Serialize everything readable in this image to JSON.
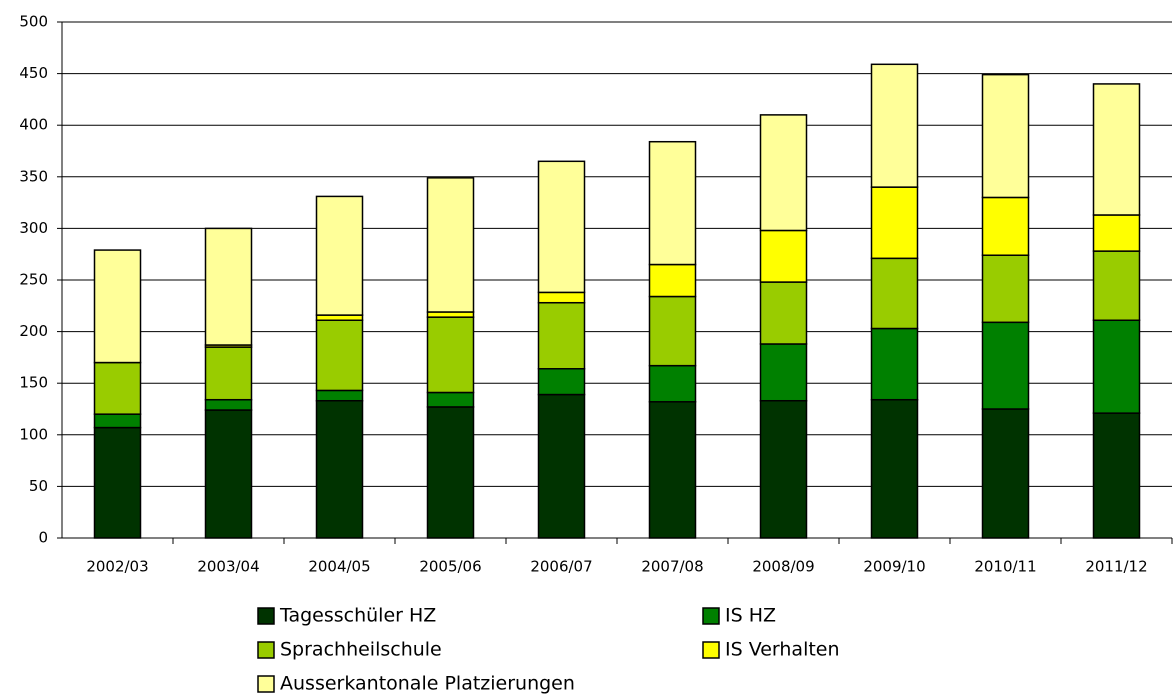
{
  "chart_data": {
    "type": "stacked_bar",
    "categories": [
      "2002/03",
      "2003/04",
      "2004/05",
      "2005/06",
      "2006/07",
      "2007/08",
      "2008/09",
      "2009/10",
      "2010/11",
      "2011/12"
    ],
    "series": [
      {
        "name": "Tagesschüler HZ",
        "color": "#003300",
        "values": [
          107,
          124,
          133,
          127,
          139,
          132,
          133,
          134,
          125,
          121
        ]
      },
      {
        "name": "IS HZ",
        "color": "#008000",
        "values": [
          13,
          10,
          10,
          14,
          25,
          35,
          55,
          69,
          84,
          90
        ]
      },
      {
        "name": "Sprachheilschule",
        "color": "#99cc00",
        "values": [
          50,
          51,
          68,
          73,
          64,
          67,
          60,
          68,
          65,
          67
        ]
      },
      {
        "name": "IS Verhalten",
        "color": "#ffff00",
        "values": [
          0,
          2,
          5,
          5,
          10,
          31,
          50,
          69,
          56,
          35
        ]
      },
      {
        "name": "Ausserkantonale Platzierungen",
        "color": "#ffff99",
        "values": [
          109,
          113,
          115,
          130,
          127,
          119,
          112,
          119,
          119,
          127
        ]
      }
    ],
    "ylim": [
      0,
      500
    ],
    "yticks": [
      0,
      50,
      100,
      150,
      200,
      250,
      300,
      350,
      400,
      450,
      500
    ],
    "grid": true
  }
}
